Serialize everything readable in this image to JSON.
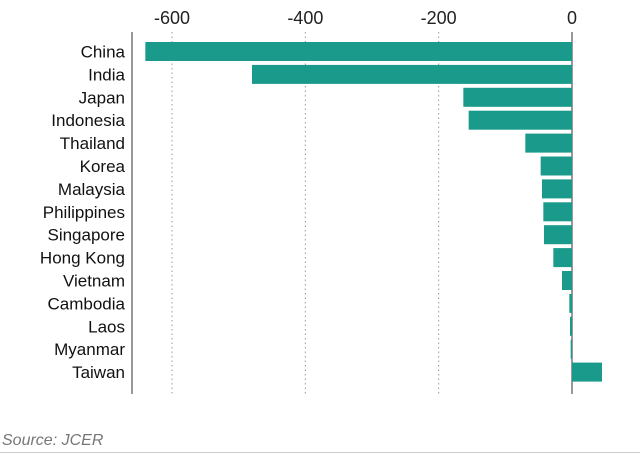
{
  "chart_data": {
    "type": "bar",
    "orientation": "horizontal",
    "categories": [
      "China",
      "India",
      "Japan",
      "Indonesia",
      "Thailand",
      "Korea",
      "Malaysia",
      "Philippines",
      "Singapore",
      "Hong Kong",
      "Vietnam",
      "Cambodia",
      "Laos",
      "Myanmar",
      "Taiwan"
    ],
    "values": [
      -640,
      -480,
      -163,
      -155,
      -70,
      -47,
      -45,
      -43,
      -42,
      -28,
      -15,
      -4,
      -3,
      -2,
      45
    ],
    "title": "",
    "xlabel": "",
    "ylabel": "",
    "xlim": [
      -660,
      60
    ],
    "ticks": [
      -600,
      -400,
      -200,
      0
    ],
    "tick_labels": [
      "-600",
      "-400",
      "-200",
      "0"
    ],
    "grid": "vertical dotted",
    "colors": {
      "bar": "#1a9a8a",
      "grid": "#999999",
      "axis": "#333333"
    }
  },
  "source": "Source: JCER"
}
